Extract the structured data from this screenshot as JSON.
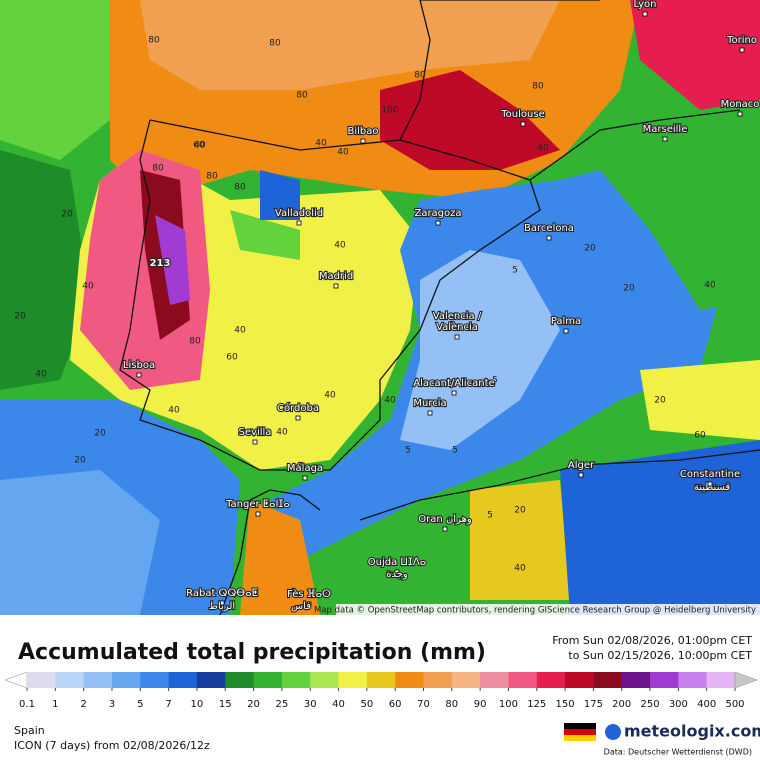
{
  "header": {
    "title": "Accumulated total precipitation (mm)",
    "period_from": "From Sun 02/08/2026, 01:00pm CET",
    "period_to": "to Sun 02/15/2026, 10:00pm CET"
  },
  "map": {
    "attribution": "Map data © OpenStreetMap contributors, rendering GIScience Research Group @ Heidelberg University",
    "peak_label": "213",
    "cities": [
      "Lyon",
      "Torino",
      "Monaco",
      "Marseille",
      "Toulouse",
      "Bilbao",
      "Valladolid",
      "Zaragoza",
      "Barcelona",
      "Madrid",
      "Valencia /",
      "València",
      "Palma",
      "Lisboa",
      "Alacant/Alicante",
      "Murcia",
      "Córdoba",
      "Sevilla",
      "Málaga",
      "Alger",
      "Constantine",
      "قسنطينة",
      "Tanger ⵟⴰⵏⵊⴰ",
      "Oran وهران",
      "Oujda ⵡⵊⴷⴰ",
      "وجدة",
      "Rabat ⵕⵕⴱⴰⵟ",
      "الرباط",
      "Fès ⴼⴰⵙ",
      "فاس"
    ],
    "contour_labels": [
      80,
      80,
      80,
      80,
      100,
      80,
      80,
      40,
      80,
      80,
      60,
      40,
      40,
      20,
      40,
      20,
      40,
      60,
      80,
      40,
      40,
      20,
      40,
      20,
      40,
      40,
      40,
      5,
      5,
      5,
      5,
      20,
      40,
      20,
      60,
      20,
      40,
      20,
      5,
      40
    ]
  },
  "legend": {
    "ticks": [
      0.1,
      1,
      2,
      3,
      5,
      7,
      10,
      15,
      20,
      25,
      30,
      40,
      50,
      60,
      70,
      80,
      90,
      100,
      125,
      150,
      175,
      200,
      250,
      300,
      400,
      500
    ],
    "colors": [
      "#ffffff",
      "#dcdcee",
      "#b8d4f6",
      "#94c0f6",
      "#64a6f0",
      "#3c88ea",
      "#1e64d8",
      "#143c9c",
      "#1e8c28",
      "#32b432",
      "#64d23c",
      "#aae650",
      "#f0f046",
      "#e6c81e",
      "#f08c14",
      "#f0a050",
      "#f5b482",
      "#f08ca0",
      "#f05a82",
      "#e61e50",
      "#be0a28",
      "#8c0a1e",
      "#6e148c",
      "#a03cd2",
      "#c882f0",
      "#e6b4f5",
      "#f5e6fa",
      "#c8c8c8"
    ]
  },
  "footer": {
    "region": "Spain",
    "model": "ICON (7 days)  from  02/08/2026/12z",
    "logo": "meteologix.com",
    "source": "Data: Deutscher Wetterdienst (DWD)"
  }
}
